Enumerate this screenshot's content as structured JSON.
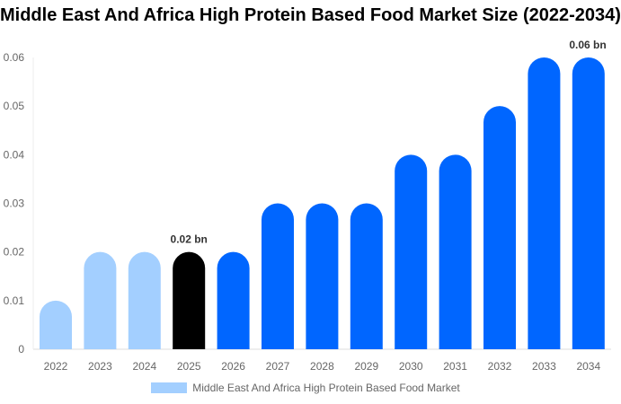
{
  "chart_data": {
    "type": "bar",
    "title": "Middle East And Africa High Protein Based Food Market Size (2022-2034)",
    "categories": [
      "2022",
      "2023",
      "2024",
      "2025",
      "2026",
      "2027",
      "2028",
      "2029",
      "2030",
      "2031",
      "2032",
      "2033",
      "2034"
    ],
    "series": [
      {
        "name": "Middle East And Africa High Protein Based Food Market",
        "values": [
          0.01,
          0.02,
          0.02,
          0.02,
          0.02,
          0.03,
          0.03,
          0.03,
          0.04,
          0.04,
          0.05,
          0.06,
          0.06
        ]
      }
    ],
    "ylim": [
      0,
      0.06
    ],
    "yticks": [
      "0",
      "0.01",
      "0.02",
      "0.03",
      "0.04",
      "0.05",
      "0.06"
    ],
    "data_labels": [
      {
        "category": "2025",
        "text": "0.02 bn"
      },
      {
        "category": "2034",
        "text": "0.06 bn"
      }
    ],
    "colors": {
      "historical": "#a3cfff",
      "current": "#000000",
      "forecast": "#0066ff"
    },
    "legend_color": "#a3cfff",
    "grid": false,
    "legend_position": "bottom"
  }
}
